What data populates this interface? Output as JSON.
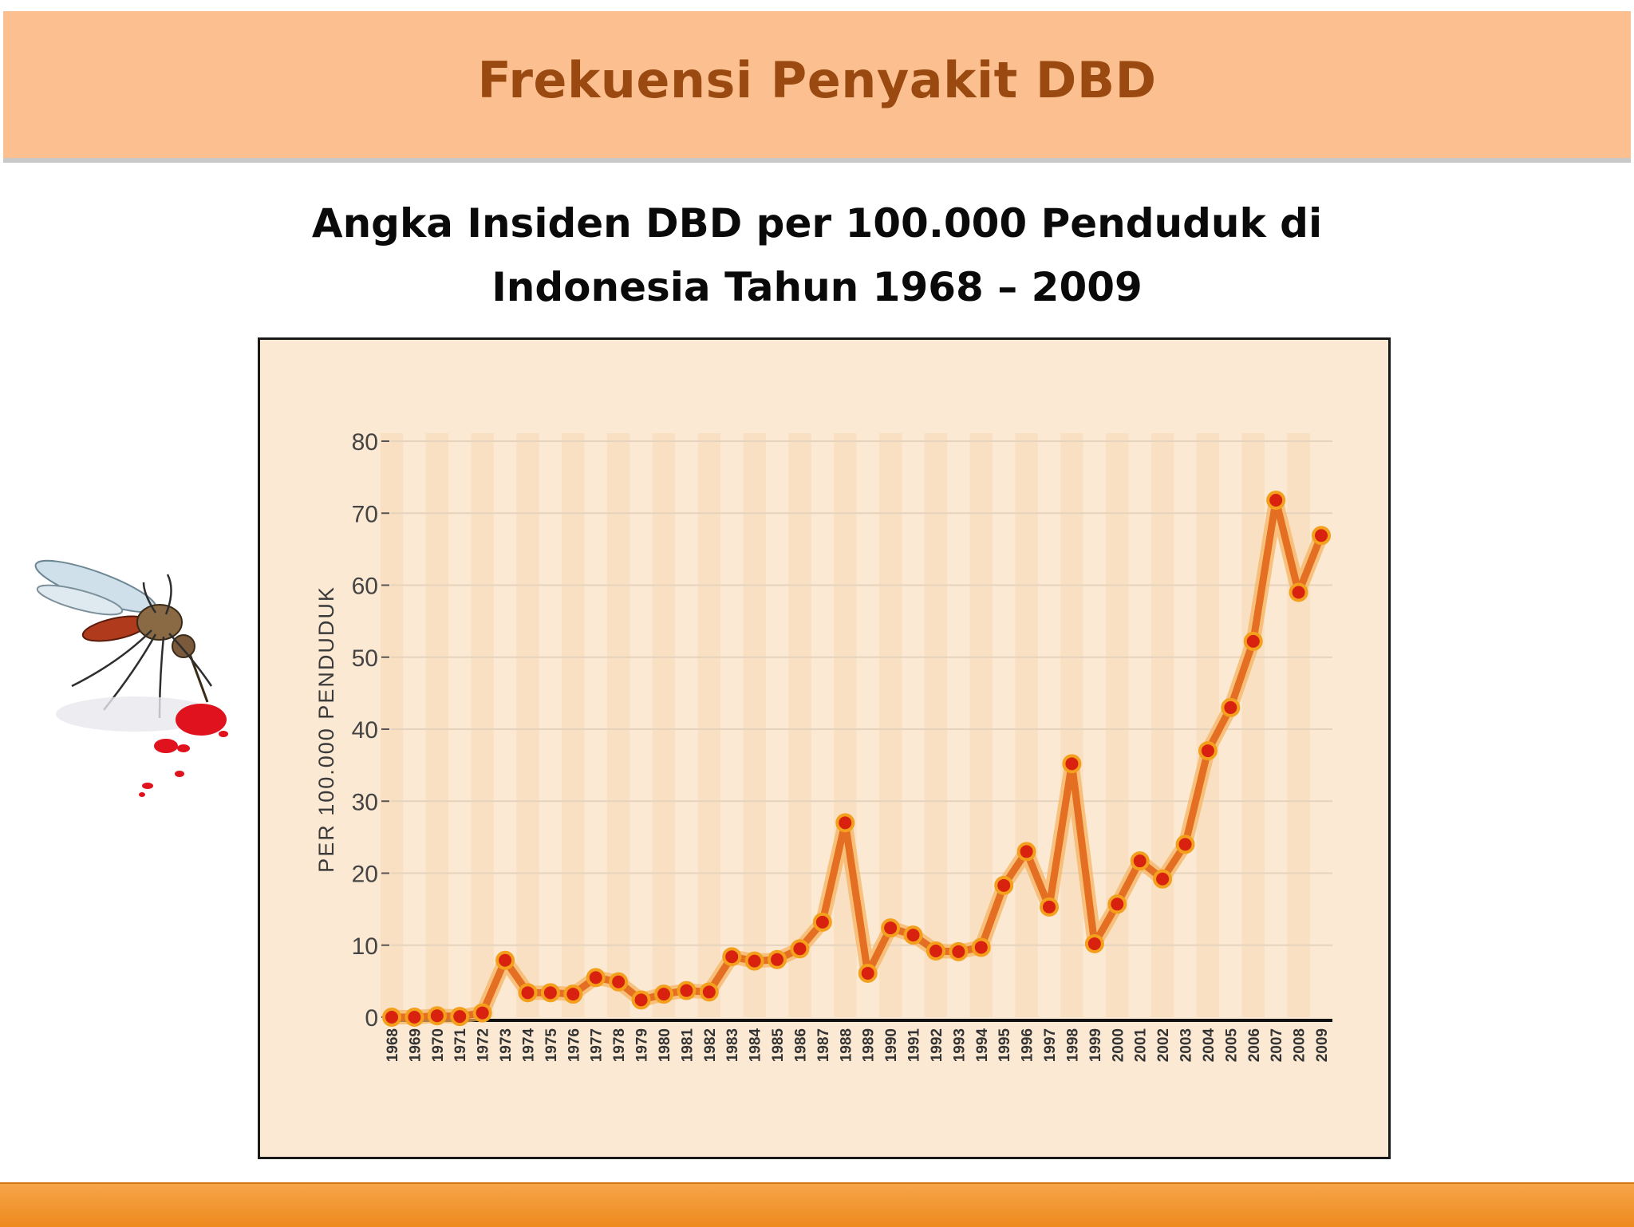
{
  "slide": {
    "title": "Frekuensi Penyakit DBD",
    "heading_line1": "Angka Insiden DBD per 100.000 Penduduk di",
    "heading_line2": "Indonesia Tahun 1968 – 2009"
  },
  "colors": {
    "header_band": "#fbbf90",
    "title_text": "#9a4a10",
    "plot_background": "#fbe9d4",
    "column_stripe": "#f8d9b2",
    "line": "#e46f22",
    "line_glow": "#f7b15a",
    "marker": "#d8210e",
    "marker_ring": "#f4a01d",
    "bottom_bar": "#ee8a1e"
  },
  "icons": [
    "mosquito-illustration",
    "blood-drops"
  ],
  "chart_data": {
    "type": "line",
    "title": "",
    "xlabel": "",
    "ylabel": "PER 100.000 PENDUDUK",
    "ylim": [
      0,
      80
    ],
    "yticks": [
      0,
      10,
      20,
      30,
      40,
      50,
      60,
      70,
      80
    ],
    "grid": "horizontal",
    "legend": "none",
    "categories": [
      "1968",
      "1969",
      "1970",
      "1971",
      "1972",
      "1973",
      "1974",
      "1975",
      "1976",
      "1977",
      "1978",
      "1979",
      "1980",
      "1981",
      "1982",
      "1983",
      "1984",
      "1985",
      "1986",
      "1987",
      "1988",
      "1989",
      "1990",
      "1991",
      "1992",
      "1993",
      "1994",
      "1995",
      "1996",
      "1997",
      "1998",
      "1999",
      "2000",
      "2001",
      "2002",
      "2003",
      "2004",
      "2005",
      "2006",
      "2007",
      "2008",
      "2009"
    ],
    "series": [
      {
        "values": [
          0,
          0,
          0.2,
          0.1,
          0.6,
          7.9,
          3.4,
          3.4,
          3.2,
          5.5,
          4.9,
          2.4,
          3.2,
          3.7,
          3.5,
          8.4,
          7.8,
          8.0,
          9.5,
          13.2,
          27.0,
          6.1,
          12.4,
          11.4,
          9.2,
          9.1,
          9.7,
          18.3,
          23.0,
          15.3,
          35.2,
          10.2,
          15.7,
          21.7,
          19.2,
          24.0,
          37.0,
          43.0,
          52.2,
          71.8,
          59.0,
          66.9
        ]
      }
    ]
  }
}
